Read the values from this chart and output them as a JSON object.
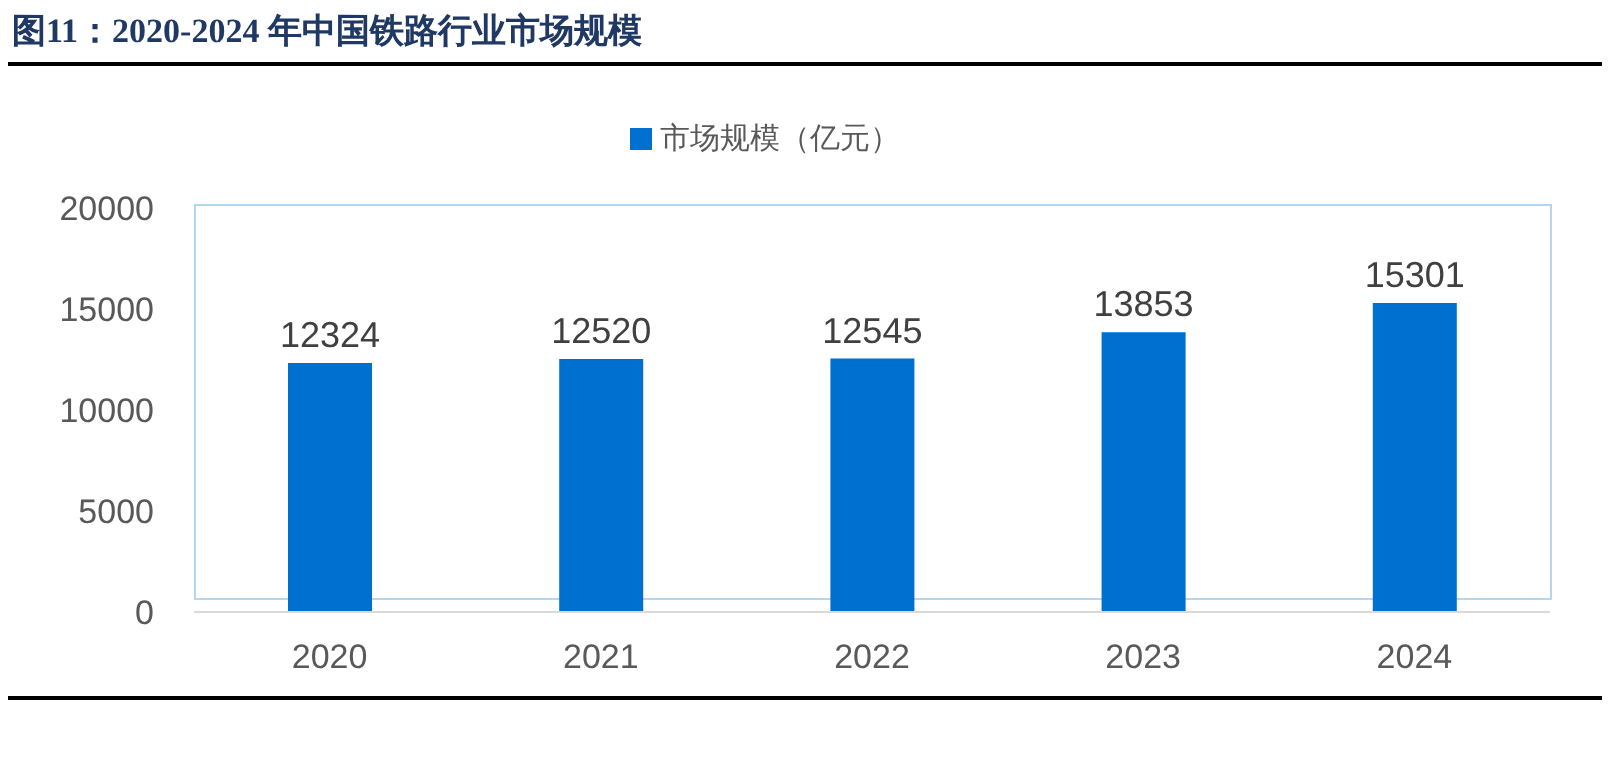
{
  "chart_data": {
    "type": "bar",
    "title": "图11：2020-2024 年中国铁路行业市场规模",
    "categories": [
      "2020",
      "2021",
      "2022",
      "2023",
      "2024"
    ],
    "series": [
      {
        "name": "市场规模（亿元）",
        "color": "#0070d0",
        "values": [
          12324,
          12520,
          12545,
          13853,
          15301
        ]
      }
    ],
    "ylim": [
      0,
      20000
    ],
    "yticks": [
      0,
      5000,
      10000,
      15000,
      20000
    ],
    "data_labels": true,
    "legend": "top",
    "grid": false
  }
}
